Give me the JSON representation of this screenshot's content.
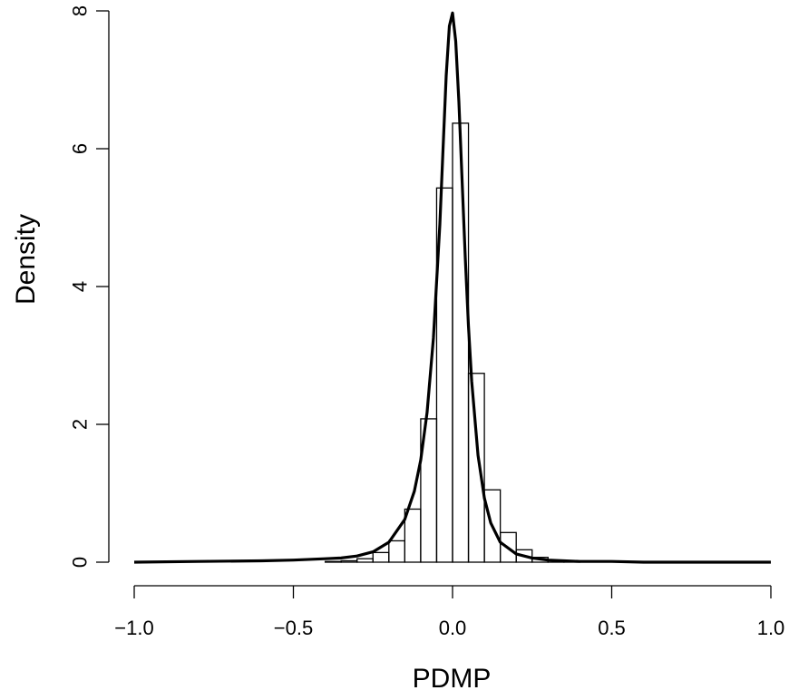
{
  "chart_data": {
    "type": "bar",
    "title": "",
    "xlabel": "PDMP",
    "ylabel": "Density",
    "xlim": [
      -1.0,
      1.0
    ],
    "ylim": [
      0,
      8
    ],
    "x_ticks": [
      -1.0,
      -0.5,
      0.0,
      0.5,
      1.0
    ],
    "x_tick_labels": [
      "−1.0",
      "−0.5",
      "0.0",
      "0.5",
      "1.0"
    ],
    "y_ticks": [
      0,
      2,
      4,
      6,
      8
    ],
    "y_tick_labels": [
      "0",
      "2",
      "4",
      "6",
      "8"
    ],
    "grid": false,
    "histogram": {
      "bin_width": 0.05,
      "bins": [
        {
          "x0": -0.4,
          "x1": -0.35,
          "density": 0.01
        },
        {
          "x0": -0.35,
          "x1": -0.3,
          "density": 0.02
        },
        {
          "x0": -0.3,
          "x1": -0.25,
          "density": 0.05
        },
        {
          "x0": -0.25,
          "x1": -0.2,
          "density": 0.14
        },
        {
          "x0": -0.2,
          "x1": -0.15,
          "density": 0.31
        },
        {
          "x0": -0.15,
          "x1": -0.1,
          "density": 0.77
        },
        {
          "x0": -0.1,
          "x1": -0.05,
          "density": 2.08
        },
        {
          "x0": -0.05,
          "x1": 0.0,
          "density": 5.43
        },
        {
          "x0": 0.0,
          "x1": 0.05,
          "density": 6.37
        },
        {
          "x0": 0.05,
          "x1": 0.1,
          "density": 2.74
        },
        {
          "x0": 0.1,
          "x1": 0.15,
          "density": 1.05
        },
        {
          "x0": 0.15,
          "x1": 0.2,
          "density": 0.43
        },
        {
          "x0": 0.2,
          "x1": 0.25,
          "density": 0.18
        },
        {
          "x0": 0.25,
          "x1": 0.3,
          "density": 0.07
        },
        {
          "x0": 0.3,
          "x1": 0.35,
          "density": 0.03
        },
        {
          "x0": 0.35,
          "x1": 0.4,
          "density": 0.01
        }
      ]
    },
    "density_curve": {
      "x": [
        -1.0,
        -0.8,
        -0.6,
        -0.5,
        -0.4,
        -0.35,
        -0.3,
        -0.25,
        -0.2,
        -0.15,
        -0.12,
        -0.1,
        -0.08,
        -0.06,
        -0.04,
        -0.03,
        -0.02,
        -0.01,
        0.0,
        0.01,
        0.02,
        0.03,
        0.04,
        0.05,
        0.06,
        0.08,
        0.1,
        0.12,
        0.15,
        0.2,
        0.25,
        0.3,
        0.35,
        0.4,
        0.5,
        0.6,
        0.8,
        1.0
      ],
      "y": [
        0.0,
        0.01,
        0.02,
        0.03,
        0.05,
        0.06,
        0.09,
        0.15,
        0.29,
        0.62,
        1.03,
        1.48,
        2.17,
        3.25,
        4.9,
        5.99,
        7.06,
        7.78,
        7.97,
        7.56,
        6.68,
        5.55,
        4.43,
        3.44,
        2.63,
        1.55,
        0.93,
        0.57,
        0.29,
        0.12,
        0.06,
        0.03,
        0.02,
        0.01,
        0.01,
        0.0,
        0.0,
        0.0
      ]
    }
  }
}
